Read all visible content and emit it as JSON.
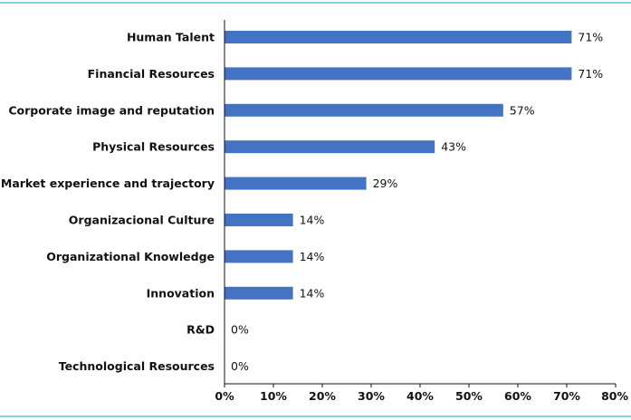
{
  "colors": {
    "bar": "#4472c4",
    "axis": "#111111",
    "frame": "#7fd3e4"
  },
  "chart_data": {
    "type": "bar",
    "orientation": "horizontal",
    "title": "",
    "xlabel": "",
    "ylabel": "",
    "categories": [
      "Human Talent",
      "Financial Resources",
      "Corporate image and reputation",
      "Physical Resources",
      "Market experience and trajectory",
      "Organizacional Culture",
      "Organizational Knowledge",
      "Innovation",
      "R&D",
      "Technological Resources"
    ],
    "values": [
      71,
      71,
      57,
      43,
      29,
      14,
      14,
      14,
      0,
      0
    ],
    "data_labels": [
      "71%",
      "71%",
      "57%",
      "43%",
      "29%",
      "14%",
      "14%",
      "14%",
      "0%",
      "0%"
    ],
    "xlim": [
      0,
      80
    ],
    "x_ticks": [
      0,
      10,
      20,
      30,
      40,
      50,
      60,
      70,
      80
    ],
    "x_tick_labels": [
      "0%",
      "10%",
      "20%",
      "30%",
      "40%",
      "50%",
      "60%",
      "70%",
      "80%"
    ],
    "grid": false,
    "legend": "none"
  }
}
